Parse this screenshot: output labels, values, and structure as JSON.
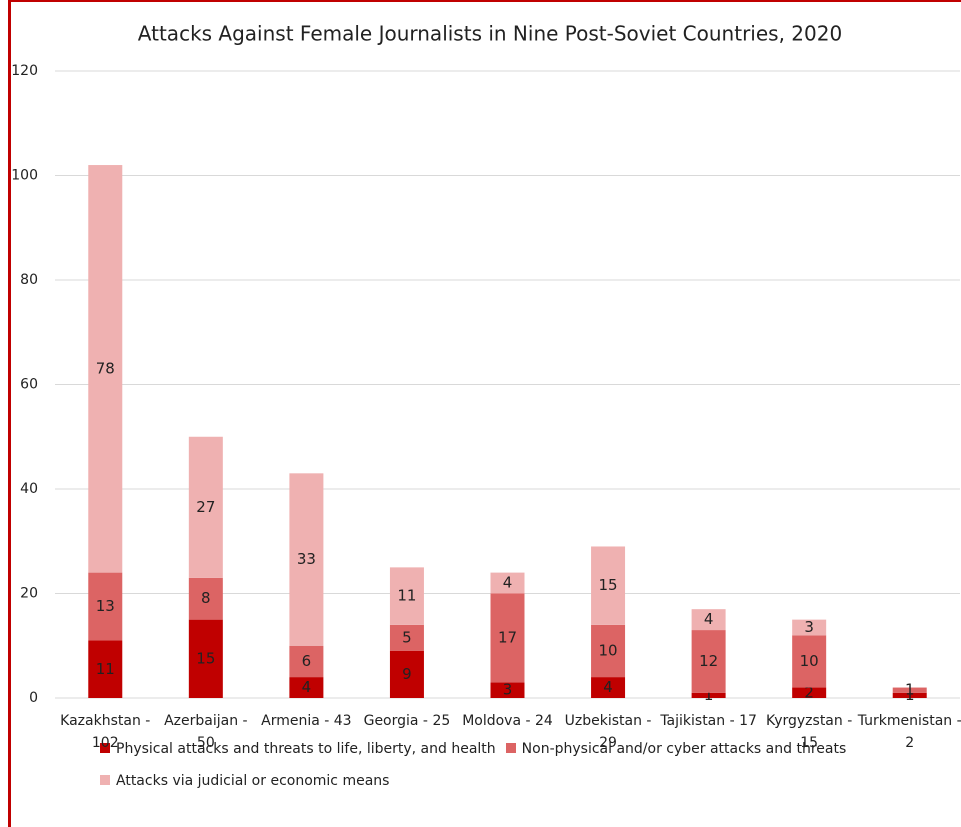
{
  "chart_data": {
    "type": "stacked_bar",
    "title": "Attacks Against Female Journalists in Nine Post-Soviet Countries, 2020",
    "categories": [
      "Kazakhstan - 102",
      "Azerbaijan - 50",
      "Armenia - 43",
      "Georgia - 25",
      "Moldova - 24",
      "Uzbekistan - 29",
      "Tajikistan - 17",
      "Kyrgyzstan - 15",
      "Turkmenistan - 2"
    ],
    "series": [
      {
        "name": "Physical attacks and threats to life, liberty, and health",
        "color": "#c00000",
        "values": [
          11,
          15,
          4,
          9,
          3,
          4,
          1,
          2,
          1
        ]
      },
      {
        "name": "Non-physical and/or cyber attacks and threats",
        "color": "#dc6464",
        "values": [
          13,
          8,
          6,
          5,
          17,
          10,
          12,
          10,
          1
        ]
      },
      {
        "name": "Attacks via judicial or economic means",
        "color": "#efb1b1",
        "values": [
          78,
          27,
          33,
          11,
          4,
          15,
          4,
          3,
          null
        ]
      }
    ],
    "ylim": [
      0,
      120
    ],
    "yticks": [
      0,
      20,
      40,
      60,
      80,
      100,
      120
    ],
    "grid": true,
    "legend": "bottom"
  }
}
